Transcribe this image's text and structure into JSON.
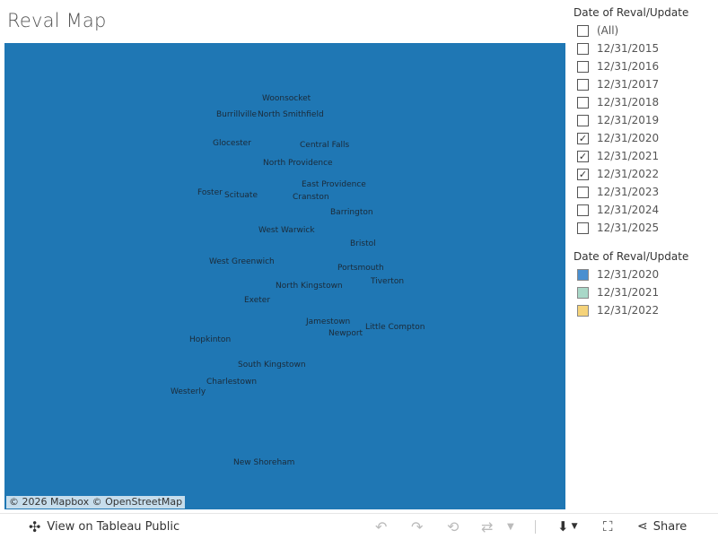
{
  "title": "Reval Map",
  "map": {
    "fill_color": "#1f77b4",
    "attribution": "© 2026 Mapbox  © OpenStreetMap",
    "towns": [
      "Woonsocket",
      "Burrillville",
      "North Smithfield",
      "Glocester",
      "Central Falls",
      "North Providence",
      "East Providence",
      "Foster",
      "Scituate",
      "Cranston",
      "Barrington",
      "West Warwick",
      "Bristol",
      "West Greenwich",
      "Portsmouth",
      "North Kingstown",
      "Tiverton",
      "Exeter",
      "Jamestown",
      "Little Compton",
      "Newport",
      "Hopkinton",
      "South Kingstown",
      "Charlestown",
      "Westerly",
      "New Shoreham"
    ]
  },
  "filter": {
    "title": "Date of Reval/Update",
    "items": [
      {
        "label": "(All)",
        "checked": false
      },
      {
        "label": "12/31/2015",
        "checked": false
      },
      {
        "label": "12/31/2016",
        "checked": false
      },
      {
        "label": "12/31/2017",
        "checked": false
      },
      {
        "label": "12/31/2018",
        "checked": false
      },
      {
        "label": "12/31/2019",
        "checked": false
      },
      {
        "label": "12/31/2020",
        "checked": true
      },
      {
        "label": "12/31/2021",
        "checked": true
      },
      {
        "label": "12/31/2022",
        "checked": true
      },
      {
        "label": "12/31/2023",
        "checked": false
      },
      {
        "label": "12/31/2024",
        "checked": false
      },
      {
        "label": "12/31/2025",
        "checked": false
      }
    ]
  },
  "legend": {
    "title": "Date of Reval/Update",
    "items": [
      {
        "label": "12/31/2020",
        "color": "#4a8fd0"
      },
      {
        "label": "12/31/2021",
        "color": "#a9d8c8"
      },
      {
        "label": "12/31/2022",
        "color": "#f5d37a"
      }
    ]
  },
  "toolbar": {
    "view_label": "View on Tableau Public",
    "share_label": "Share"
  }
}
